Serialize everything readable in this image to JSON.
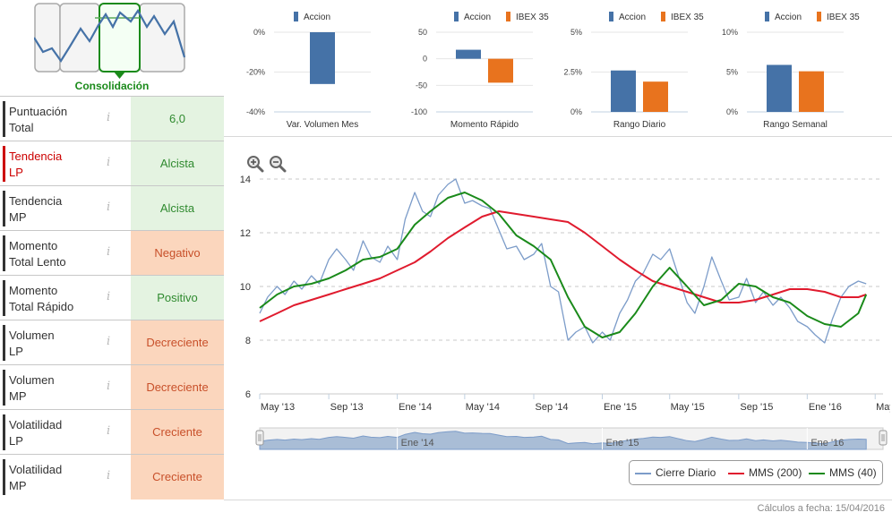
{
  "phase": {
    "label": "Consolidación"
  },
  "metrics": [
    {
      "label1": "Puntuación",
      "label2": "Total",
      "value": "6,0",
      "status": "green",
      "highlight": false
    },
    {
      "label1": "Tendencia",
      "label2": "LP",
      "value": "Alcista",
      "status": "green",
      "highlight": true
    },
    {
      "label1": "Tendencia",
      "label2": "MP",
      "value": "Alcista",
      "status": "green",
      "highlight": false
    },
    {
      "label1": "Momento",
      "label2": "Total Lento",
      "value": "Negativo",
      "status": "orange",
      "highlight": false
    },
    {
      "label1": "Momento",
      "label2": "Total Rápido",
      "value": "Positivo",
      "status": "green",
      "highlight": false
    },
    {
      "label1": "Volumen",
      "label2": "LP",
      "value": "Decreciente",
      "status": "orange",
      "highlight": false
    },
    {
      "label1": "Volumen",
      "label2": "MP",
      "value": "Decreciente",
      "status": "orange",
      "highlight": false
    },
    {
      "label1": "Volatilidad",
      "label2": "LP",
      "value": "Creciente",
      "status": "orange",
      "highlight": false
    },
    {
      "label1": "Volatilidad",
      "label2": "MP",
      "value": "Creciente",
      "status": "orange",
      "highlight": false
    }
  ],
  "colors": {
    "accion": "#4572a7",
    "ibex": "#e8731e",
    "cierre": "#7c9cc9",
    "mms200": "#e01b2e",
    "mms40": "#1a8a1a",
    "green_text": "#2f8a2f",
    "orange_text": "#c8502a",
    "highlight": "#cc0000"
  },
  "chart_data": [
    {
      "type": "bar",
      "title": "Var. Volumen Mes",
      "series": [
        {
          "name": "Accion",
          "values": [
            -26
          ]
        }
      ],
      "yticks": [
        "0%",
        "-20%",
        "-40%"
      ],
      "ylim": [
        -40,
        0
      ]
    },
    {
      "type": "bar",
      "title": "Momento Rápido",
      "series": [
        {
          "name": "Accion",
          "values": [
            17
          ]
        },
        {
          "name": "IBEX 35",
          "values": [
            -45
          ]
        }
      ],
      "yticks": [
        "50",
        "0",
        "-50",
        "-100"
      ],
      "ylim": [
        -100,
        50
      ]
    },
    {
      "type": "bar",
      "title": "Rango Diario",
      "series": [
        {
          "name": "Accion",
          "values": [
            2.6
          ]
        },
        {
          "name": "IBEX 35",
          "values": [
            1.9
          ]
        }
      ],
      "yticks": [
        "5%",
        "2.5%",
        "0%"
      ],
      "ylim": [
        0,
        5
      ]
    },
    {
      "type": "bar",
      "title": "Rango Semanal",
      "series": [
        {
          "name": "Accion",
          "values": [
            5.9
          ]
        },
        {
          "name": "IBEX 35",
          "values": [
            5.1
          ]
        }
      ],
      "yticks": [
        "10%",
        "5%",
        "0%"
      ],
      "ylim": [
        0,
        10
      ]
    },
    {
      "type": "line",
      "yticks": [
        6,
        8,
        10,
        12,
        14
      ],
      "ylim": [
        6,
        14.8
      ],
      "xlim": [
        "2013-05-01",
        "2016-05-15"
      ],
      "xticks": [
        {
          "date": "2013-05-01",
          "label": "May '13"
        },
        {
          "date": "2013-09-01",
          "label": "Sep '13"
        },
        {
          "date": "2014-01-01",
          "label": "Ene '14"
        },
        {
          "date": "2014-05-01",
          "label": "May '14"
        },
        {
          "date": "2014-09-01",
          "label": "Sep '14"
        },
        {
          "date": "2015-01-01",
          "label": "Ene '15"
        },
        {
          "date": "2015-05-01",
          "label": "May '15"
        },
        {
          "date": "2015-09-01",
          "label": "Sep '15"
        },
        {
          "date": "2016-01-01",
          "label": "Ene '16"
        },
        {
          "date": "2016-05-01",
          "label": "May '16"
        }
      ],
      "navigator_labels": [
        "Ene '14",
        "Ene '15",
        "Ene '16"
      ],
      "navigator_label_dates": [
        "2014-01-01",
        "2015-01-01",
        "2016-01-01"
      ],
      "series": [
        {
          "name": "Cierre Diario",
          "points": [
            [
              "2013-05-01",
              9.0
            ],
            [
              "2013-05-15",
              9.6
            ],
            [
              "2013-06-01",
              10.0
            ],
            [
              "2013-06-15",
              9.7
            ],
            [
              "2013-07-01",
              10.2
            ],
            [
              "2013-07-15",
              9.9
            ],
            [
              "2013-08-01",
              10.4
            ],
            [
              "2013-08-15",
              10.1
            ],
            [
              "2013-09-01",
              11.0
            ],
            [
              "2013-09-15",
              11.4
            ],
            [
              "2013-10-01",
              11.0
            ],
            [
              "2013-10-15",
              10.6
            ],
            [
              "2013-11-01",
              11.7
            ],
            [
              "2013-11-15",
              11.1
            ],
            [
              "2013-12-01",
              10.9
            ],
            [
              "2013-12-15",
              11.5
            ],
            [
              "2014-01-01",
              11.0
            ],
            [
              "2014-01-15",
              12.5
            ],
            [
              "2014-02-01",
              13.5
            ],
            [
              "2014-02-15",
              12.8
            ],
            [
              "2014-03-01",
              12.6
            ],
            [
              "2014-03-15",
              13.4
            ],
            [
              "2014-04-01",
              13.8
            ],
            [
              "2014-04-15",
              14.0
            ],
            [
              "2014-05-01",
              13.1
            ],
            [
              "2014-05-15",
              13.2
            ],
            [
              "2014-06-01",
              13.0
            ],
            [
              "2014-06-15",
              12.9
            ],
            [
              "2014-07-01",
              12.1
            ],
            [
              "2014-07-15",
              11.4
            ],
            [
              "2014-08-01",
              11.5
            ],
            [
              "2014-08-15",
              11.0
            ],
            [
              "2014-09-01",
              11.2
            ],
            [
              "2014-09-15",
              11.6
            ],
            [
              "2014-10-01",
              10.0
            ],
            [
              "2014-10-15",
              9.8
            ],
            [
              "2014-11-01",
              8.0
            ],
            [
              "2014-11-15",
              8.3
            ],
            [
              "2014-12-01",
              8.5
            ],
            [
              "2014-12-15",
              7.9
            ],
            [
              "2015-01-01",
              8.3
            ],
            [
              "2015-01-15",
              8.0
            ],
            [
              "2015-02-01",
              9.0
            ],
            [
              "2015-02-15",
              9.5
            ],
            [
              "2015-03-01",
              10.2
            ],
            [
              "2015-03-15",
              10.5
            ],
            [
              "2015-04-01",
              11.2
            ],
            [
              "2015-04-15",
              11.0
            ],
            [
              "2015-05-01",
              11.4
            ],
            [
              "2015-05-15",
              10.5
            ],
            [
              "2015-06-01",
              9.4
            ],
            [
              "2015-06-15",
              9.0
            ],
            [
              "2015-07-01",
              10.0
            ],
            [
              "2015-07-15",
              11.1
            ],
            [
              "2015-08-01",
              10.2
            ],
            [
              "2015-08-15",
              9.5
            ],
            [
              "2015-09-01",
              9.6
            ],
            [
              "2015-09-15",
              10.3
            ],
            [
              "2015-10-01",
              9.4
            ],
            [
              "2015-10-15",
              9.8
            ],
            [
              "2015-11-01",
              9.3
            ],
            [
              "2015-11-15",
              9.6
            ],
            [
              "2015-12-01",
              9.2
            ],
            [
              "2015-12-15",
              8.7
            ],
            [
              "2016-01-01",
              8.5
            ],
            [
              "2016-01-15",
              8.2
            ],
            [
              "2016-02-01",
              7.9
            ],
            [
              "2016-02-15",
              8.8
            ],
            [
              "2016-03-01",
              9.6
            ],
            [
              "2016-03-15",
              10.0
            ],
            [
              "2016-04-01",
              10.2
            ],
            [
              "2016-04-15",
              10.1
            ]
          ]
        },
        {
          "name": "MMS (200)",
          "points": [
            [
              "2013-05-01",
              8.7
            ],
            [
              "2013-06-01",
              9.0
            ],
            [
              "2013-07-01",
              9.3
            ],
            [
              "2013-08-01",
              9.5
            ],
            [
              "2013-09-01",
              9.7
            ],
            [
              "2013-10-01",
              9.9
            ],
            [
              "2013-11-01",
              10.1
            ],
            [
              "2013-12-01",
              10.3
            ],
            [
              "2014-01-01",
              10.6
            ],
            [
              "2014-02-01",
              10.9
            ],
            [
              "2014-03-01",
              11.3
            ],
            [
              "2014-04-01",
              11.8
            ],
            [
              "2014-05-01",
              12.2
            ],
            [
              "2014-06-01",
              12.6
            ],
            [
              "2014-07-01",
              12.8
            ],
            [
              "2014-08-01",
              12.7
            ],
            [
              "2014-09-01",
              12.6
            ],
            [
              "2014-10-01",
              12.5
            ],
            [
              "2014-11-01",
              12.4
            ],
            [
              "2014-12-01",
              12.0
            ],
            [
              "2015-01-01",
              11.5
            ],
            [
              "2015-02-01",
              11.0
            ],
            [
              "2015-03-01",
              10.6
            ],
            [
              "2015-04-01",
              10.2
            ],
            [
              "2015-05-01",
              10.0
            ],
            [
              "2015-06-01",
              9.8
            ],
            [
              "2015-07-01",
              9.6
            ],
            [
              "2015-08-01",
              9.4
            ],
            [
              "2015-09-01",
              9.4
            ],
            [
              "2015-10-01",
              9.5
            ],
            [
              "2015-11-01",
              9.7
            ],
            [
              "2015-12-01",
              9.9
            ],
            [
              "2016-01-01",
              9.9
            ],
            [
              "2016-02-01",
              9.8
            ],
            [
              "2016-03-01",
              9.6
            ],
            [
              "2016-04-01",
              9.6
            ],
            [
              "2016-04-15",
              9.7
            ]
          ]
        },
        {
          "name": "MMS (40)",
          "points": [
            [
              "2013-05-01",
              9.2
            ],
            [
              "2013-06-01",
              9.7
            ],
            [
              "2013-07-01",
              10.0
            ],
            [
              "2013-08-01",
              10.1
            ],
            [
              "2013-09-01",
              10.3
            ],
            [
              "2013-10-01",
              10.6
            ],
            [
              "2013-11-01",
              11.0
            ],
            [
              "2013-12-01",
              11.1
            ],
            [
              "2014-01-01",
              11.4
            ],
            [
              "2014-02-01",
              12.3
            ],
            [
              "2014-03-01",
              12.8
            ],
            [
              "2014-04-01",
              13.3
            ],
            [
              "2014-05-01",
              13.5
            ],
            [
              "2014-06-01",
              13.2
            ],
            [
              "2014-07-01",
              12.7
            ],
            [
              "2014-08-01",
              11.9
            ],
            [
              "2014-09-01",
              11.5
            ],
            [
              "2014-10-01",
              11.0
            ],
            [
              "2014-11-01",
              9.6
            ],
            [
              "2014-12-01",
              8.5
            ],
            [
              "2015-01-01",
              8.1
            ],
            [
              "2015-02-01",
              8.3
            ],
            [
              "2015-03-01",
              9.0
            ],
            [
              "2015-04-01",
              10.0
            ],
            [
              "2015-05-01",
              10.7
            ],
            [
              "2015-06-01",
              10.0
            ],
            [
              "2015-07-01",
              9.3
            ],
            [
              "2015-08-01",
              9.5
            ],
            [
              "2015-09-01",
              10.1
            ],
            [
              "2015-10-01",
              10.0
            ],
            [
              "2015-11-01",
              9.6
            ],
            [
              "2015-12-01",
              9.4
            ],
            [
              "2016-01-01",
              8.9
            ],
            [
              "2016-02-01",
              8.6
            ],
            [
              "2016-03-01",
              8.5
            ],
            [
              "2016-04-01",
              9.0
            ],
            [
              "2016-04-15",
              9.7
            ]
          ]
        }
      ]
    }
  ],
  "legend": {
    "cierre": "Cierre Diario",
    "mms200": "MMS (200)",
    "mms40": "MMS (40)"
  },
  "footer": {
    "text": "Cálculos a fecha: 15/04/2016"
  }
}
